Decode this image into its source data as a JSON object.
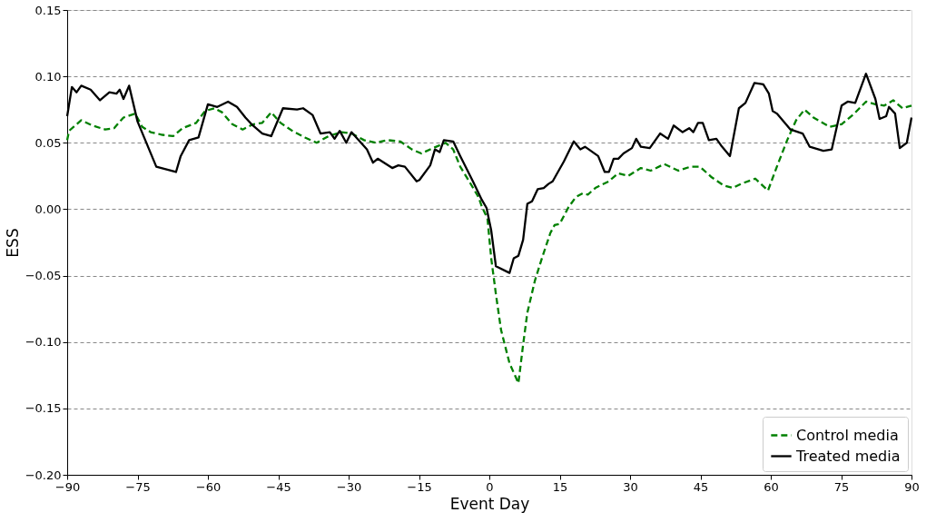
{
  "chart_data": {
    "type": "line",
    "xlabel": "Event Day",
    "ylabel": "ESS",
    "xlim": [
      -90,
      90
    ],
    "ylim": [
      -0.2,
      0.15
    ],
    "xticks": [
      {
        "value": -90,
        "label": "−90"
      },
      {
        "value": -75,
        "label": "−75"
      },
      {
        "value": -60,
        "label": "−60"
      },
      {
        "value": -45,
        "label": "−45"
      },
      {
        "value": -30,
        "label": "−30"
      },
      {
        "value": -15,
        "label": "−15"
      },
      0,
      15,
      30,
      45,
      60,
      75,
      90
    ],
    "yticks": [
      {
        "value": -0.2,
        "label": "−0.20"
      },
      {
        "value": -0.15,
        "label": "−0.15"
      },
      {
        "value": -0.1,
        "label": "−0.10"
      },
      {
        "value": -0.05,
        "label": "−0.05"
      },
      {
        "value": 0,
        "label": "0.00"
      },
      {
        "value": 0.05,
        "label": "0.05"
      },
      {
        "value": 0.1,
        "label": "0.10"
      },
      0.15
    ],
    "grid": "y",
    "legend": "bottom right",
    "marker": "none",
    "series": [
      {
        "name": "Control media",
        "color": "#008000",
        "line_style": "dashed",
        "x": [
          -90,
          -89.6,
          -87,
          -84.6,
          -81.9,
          -80,
          -78,
          -75.5,
          -74,
          -72.2,
          -69.7,
          -67.4,
          -65.4,
          -62.5,
          -60.6,
          -58.6,
          -57,
          -54.8,
          -52.6,
          -50.3,
          -48.4,
          -46.5,
          -44.5,
          -42,
          -39.3,
          -36.8,
          -34.3,
          -31.5,
          -29.4,
          -26.7,
          -24.2,
          -21.7,
          -19,
          -16.5,
          -14.5,
          -12,
          -9.3,
          -7.7,
          -6.2,
          -4.3,
          -2.3,
          -1.6,
          -0.4,
          0.4,
          1.4,
          2.5,
          4.3,
          6.2,
          7.2,
          8.1,
          9.7,
          11.2,
          13,
          13.9,
          15,
          16.8,
          18.4,
          19.9,
          21,
          22.6,
          25.5,
          26.1,
          27.5,
          29.6,
          32.3,
          34.4,
          37.3,
          40.3,
          42.9,
          44.9,
          47.4,
          49.9,
          51.9,
          53.6,
          56.7,
          59.4,
          61.3,
          63.5,
          65.4,
          67.2,
          69.1,
          72.6,
          75.1,
          77.8,
          80.3,
          82.3,
          84.2,
          86.1,
          88.1,
          90
        ],
        "values": [
          0.052,
          0.059,
          0.067,
          0.063,
          0.06,
          0.061,
          0.069,
          0.072,
          0.062,
          0.058,
          0.056,
          0.055,
          0.061,
          0.065,
          0.074,
          0.076,
          0.073,
          0.064,
          0.06,
          0.064,
          0.065,
          0.073,
          0.065,
          0.059,
          0.054,
          0.05,
          0.055,
          0.058,
          0.057,
          0.052,
          0.05,
          0.052,
          0.051,
          0.045,
          0.042,
          0.046,
          0.05,
          0.045,
          0.032,
          0.021,
          0.009,
          0.002,
          -0.007,
          -0.037,
          -0.064,
          -0.091,
          -0.116,
          -0.131,
          -0.102,
          -0.078,
          -0.054,
          -0.037,
          -0.018,
          -0.012,
          -0.011,
          0.001,
          0.009,
          0.012,
          0.011,
          0.016,
          0.021,
          0.023,
          0.027,
          0.025,
          0.031,
          0.029,
          0.034,
          0.029,
          0.032,
          0.032,
          0.024,
          0.018,
          0.016,
          0.019,
          0.023,
          0.014,
          0.032,
          0.052,
          0.067,
          0.075,
          0.069,
          0.062,
          0.064,
          0.072,
          0.081,
          0.079,
          0.078,
          0.082,
          0.076,
          0.078
        ]
      },
      {
        "name": "Treated media",
        "color": "#000000",
        "line_style": "solid",
        "x": [
          -90,
          -89,
          -88,
          -87,
          -85,
          -83,
          -81,
          -79.5,
          -78.8,
          -78,
          -77.4,
          -76.8,
          -75,
          -71,
          -66.8,
          -65.8,
          -64,
          -62,
          -60,
          -58,
          -55.7,
          -53.8,
          -52,
          -50.7,
          -48.4,
          -46.5,
          -44,
          -41,
          -39.7,
          -37.7,
          -36,
          -34,
          -33,
          -31.9,
          -30.5,
          -29.4,
          -26.1,
          -24.8,
          -23.8,
          -20.7,
          -19.4,
          -18,
          -15.5,
          -14.9,
          -12.6,
          -11.6,
          -10.6,
          -9.7,
          -7.7,
          -6.2,
          -3.5,
          -1.6,
          -0.6,
          0.4,
          1.4,
          4.3,
          5.2,
          6.2,
          7.2,
          8.1,
          9.1,
          10.3,
          11.6,
          12.6,
          13.5,
          15.9,
          18,
          19.4,
          20.4,
          23.2,
          24.6,
          25.5,
          26.5,
          27.5,
          28.6,
          30.4,
          31.3,
          32.3,
          34.2,
          36.4,
          38.1,
          39.3,
          41.2,
          42.6,
          43.5,
          44.5,
          45.5,
          46.8,
          48.4,
          49.4,
          51.3,
          53.2,
          54.6,
          56.5,
          58.4,
          59.6,
          60.4,
          61.3,
          64.2,
          66.8,
          68.3,
          71.2,
          73,
          75.1,
          76.4,
          78,
          80.3,
          82.3,
          83.2,
          84.6,
          85.2,
          86.5,
          87.5,
          89,
          90
        ],
        "values": [
          0.07,
          0.092,
          0.088,
          0.093,
          0.09,
          0.082,
          0.088,
          0.087,
          0.09,
          0.083,
          0.088,
          0.093,
          0.066,
          0.032,
          0.028,
          0.04,
          0.052,
          0.054,
          0.079,
          0.077,
          0.081,
          0.077,
          0.069,
          0.064,
          0.057,
          0.055,
          0.076,
          0.075,
          0.076,
          0.071,
          0.057,
          0.058,
          0.053,
          0.059,
          0.05,
          0.058,
          0.045,
          0.035,
          0.038,
          0.031,
          0.033,
          0.032,
          0.021,
          0.022,
          0.033,
          0.045,
          0.043,
          0.052,
          0.051,
          0.04,
          0.021,
          0.007,
          0.001,
          -0.016,
          -0.043,
          -0.048,
          -0.037,
          -0.035,
          -0.023,
          0.004,
          0.006,
          0.015,
          0.016,
          0.019,
          0.021,
          0.036,
          0.051,
          0.045,
          0.047,
          0.04,
          0.028,
          0.028,
          0.038,
          0.038,
          0.042,
          0.046,
          0.053,
          0.047,
          0.046,
          0.057,
          0.053,
          0.063,
          0.058,
          0.061,
          0.058,
          0.065,
          0.065,
          0.052,
          0.053,
          0.048,
          0.04,
          0.076,
          0.08,
          0.095,
          0.094,
          0.087,
          0.074,
          0.072,
          0.06,
          0.057,
          0.047,
          0.044,
          0.045,
          0.078,
          0.081,
          0.08,
          0.102,
          0.083,
          0.068,
          0.07,
          0.077,
          0.072,
          0.046,
          0.05,
          0.069
        ]
      }
    ]
  }
}
